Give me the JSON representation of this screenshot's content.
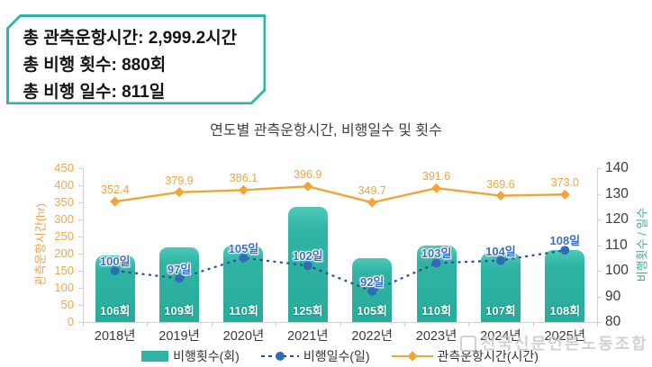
{
  "summary_box": {
    "lines": [
      "총 관측운항시간: 2,999.2시간",
      "총 비행 횟수: 880회",
      "총 비행 일수: 811일"
    ]
  },
  "chart": {
    "title": "연도별 관측운항시간, 비행일수 및 횟수"
  },
  "chart_data": {
    "type": "combo",
    "categories": [
      "2018년",
      "2019년",
      "2020년",
      "2021년",
      "2022년",
      "2023년",
      "2024년",
      "2025년"
    ],
    "series": [
      {
        "name": "비행횟수(회)",
        "type": "bar",
        "axis": "right",
        "values": [
          106,
          109,
          110,
          125,
          105,
          110,
          107,
          108
        ],
        "labels": [
          "106회",
          "109회",
          "110회",
          "125회",
          "105회",
          "110회",
          "107회",
          "108회"
        ],
        "color": "#2FB3A3"
      },
      {
        "name": "비행일수(일)",
        "type": "dashed-line",
        "axis": "right",
        "values": [
          100,
          97,
          105,
          102,
          92,
          103,
          104,
          108
        ],
        "labels": [
          "100일",
          "97일",
          "105일",
          "102일",
          "92일",
          "103일",
          "104일",
          "108일"
        ],
        "color": "#2E6CB5",
        "line_color": "#27508F"
      },
      {
        "name": "관측운항시간(시간)",
        "type": "line",
        "axis": "left",
        "values": [
          352.4,
          379.9,
          386.1,
          396.9,
          349.7,
          391.6,
          369.6,
          373.0
        ],
        "labels": [
          "352.4",
          "379.9",
          "386.1",
          "396.9",
          "349.7",
          "391.6",
          "369.6",
          "373.0"
        ],
        "color": "#F2A438"
      }
    ],
    "left_axis": {
      "label": "관측운항시간(hr)",
      "min": 0,
      "max": 450,
      "step": 50
    },
    "right_axis": {
      "label": "비행횟수 / 일수",
      "min": 80,
      "max": 140,
      "step": 10
    },
    "grid": false,
    "legend_position": "bottom"
  },
  "watermark": {
    "text": "전국신문언론노동조합"
  },
  "colors": {
    "bar_teal": "#2FB3A3",
    "box_border_teal": "#2FB5A6",
    "hours_orange": "#F2A438",
    "left_tick_orange": "#EFA64A",
    "days_line_navy": "#27508F",
    "days_marker_blue": "#2E6CB5",
    "day_label_blue": "#3D6FC5",
    "axis_gray": "#CFCFCF",
    "text_dark": "#3A3A3A",
    "watermark_gray": "#C6C6C6"
  }
}
